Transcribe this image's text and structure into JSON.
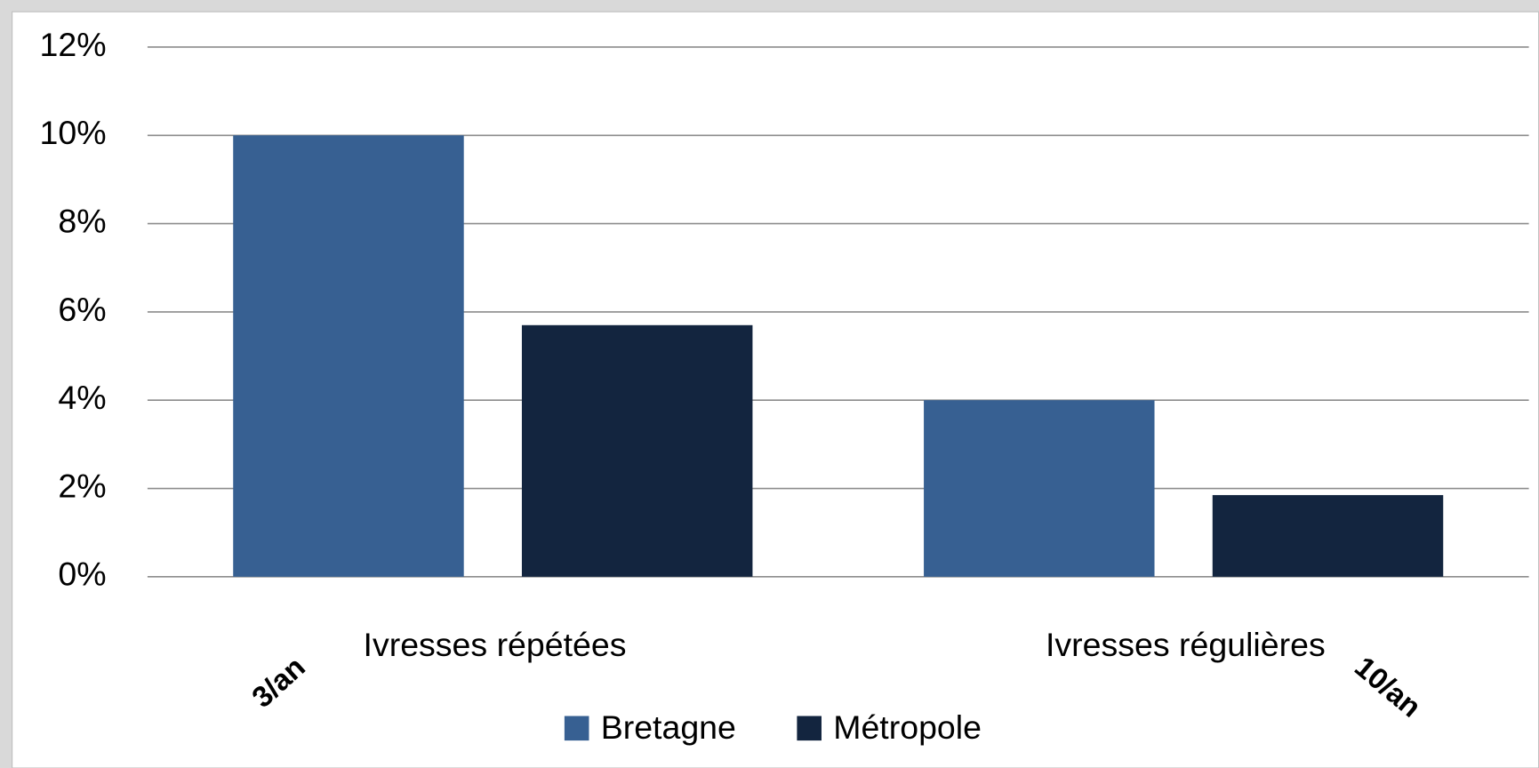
{
  "chart_data": {
    "type": "bar",
    "categories": [
      "Ivresses répétées",
      "Ivresses régulières"
    ],
    "series": [
      {
        "name": "Bretagne",
        "color": "#376092",
        "values": [
          10,
          4
        ]
      },
      {
        "name": "Métropole",
        "color": "#13253f",
        "values": [
          5.7,
          1.85
        ]
      }
    ],
    "ylim": [
      0,
      12
    ],
    "yticks": [
      {
        "value": 0,
        "label": "0%"
      },
      {
        "value": 2,
        "label": "2%"
      },
      {
        "value": 4,
        "label": "4%"
      },
      {
        "value": 6,
        "label": "6%"
      },
      {
        "value": 8,
        "label": "8%"
      },
      {
        "value": 10,
        "label": "10%"
      },
      {
        "value": 12,
        "label": "12%"
      }
    ],
    "grid": true,
    "legend": "bottom",
    "annotations": [
      "3/an",
      "10/an"
    ]
  }
}
